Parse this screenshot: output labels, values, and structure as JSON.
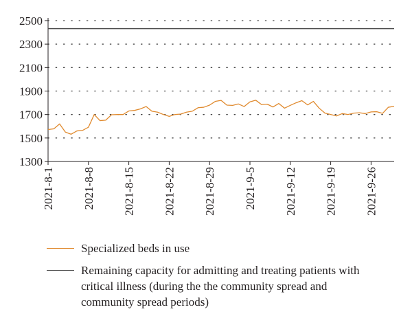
{
  "chart_data": {
    "type": "line",
    "title": "",
    "xlabel": "",
    "ylabel": "",
    "ylim": [
      1300,
      2500
    ],
    "yticks": [
      1300,
      1500,
      1700,
      1900,
      2100,
      2300,
      2500
    ],
    "xlim": [
      "2021-8-1",
      "2021-9-30"
    ],
    "xticks": [
      "2021-8-1",
      "2021-8-8",
      "2021-8-15",
      "2021-8-22",
      "2021-8-29",
      "2021-9-5",
      "2021-9-12",
      "2021-9-19",
      "2021-9-26"
    ],
    "grid": "horizontal dotted",
    "legend_position": "bottom",
    "series": [
      {
        "name": "Specialized beds in use",
        "color": "#e08a2e",
        "x": [
          "2021-8-1",
          "2021-8-2",
          "2021-8-3",
          "2021-8-4",
          "2021-8-5",
          "2021-8-6",
          "2021-8-7",
          "2021-8-8",
          "2021-8-9",
          "2021-8-10",
          "2021-8-11",
          "2021-8-12",
          "2021-8-13",
          "2021-8-14",
          "2021-8-15",
          "2021-8-16",
          "2021-8-17",
          "2021-8-18",
          "2021-8-19",
          "2021-8-20",
          "2021-8-21",
          "2021-8-22",
          "2021-8-23",
          "2021-8-24",
          "2021-8-25",
          "2021-8-26",
          "2021-8-27",
          "2021-8-28",
          "2021-8-29",
          "2021-8-30",
          "2021-8-31",
          "2021-9-1",
          "2021-9-2",
          "2021-9-3",
          "2021-9-4",
          "2021-9-5",
          "2021-9-6",
          "2021-9-7",
          "2021-9-8",
          "2021-9-9",
          "2021-9-10",
          "2021-9-11",
          "2021-9-12",
          "2021-9-13",
          "2021-9-14",
          "2021-9-15",
          "2021-9-16",
          "2021-9-17",
          "2021-9-18",
          "2021-9-19",
          "2021-9-20",
          "2021-9-21",
          "2021-9-22",
          "2021-9-23",
          "2021-9-24",
          "2021-9-25",
          "2021-9-26",
          "2021-9-27",
          "2021-9-28",
          "2021-9-29",
          "2021-9-30"
        ],
        "values": [
          1572,
          1578,
          1620,
          1550,
          1532,
          1560,
          1565,
          1592,
          1700,
          1648,
          1652,
          1698,
          1700,
          1700,
          1730,
          1735,
          1748,
          1768,
          1728,
          1720,
          1700,
          1684,
          1700,
          1704,
          1720,
          1728,
          1758,
          1762,
          1780,
          1812,
          1820,
          1780,
          1778,
          1790,
          1768,
          1808,
          1822,
          1785,
          1788,
          1764,
          1794,
          1754,
          1778,
          1800,
          1818,
          1782,
          1812,
          1754,
          1712,
          1700,
          1688,
          1708,
          1700,
          1712,
          1715,
          1708,
          1722,
          1724,
          1710,
          1762,
          1770
        ]
      },
      {
        "name": "Remaining capacity for admitting and treating patients with critical illness (during the the community spread and community spread periods)",
        "color": "#4d4d4d",
        "x": [
          "2021-8-1",
          "2021-9-30"
        ],
        "values": [
          2432,
          2432
        ]
      }
    ]
  }
}
